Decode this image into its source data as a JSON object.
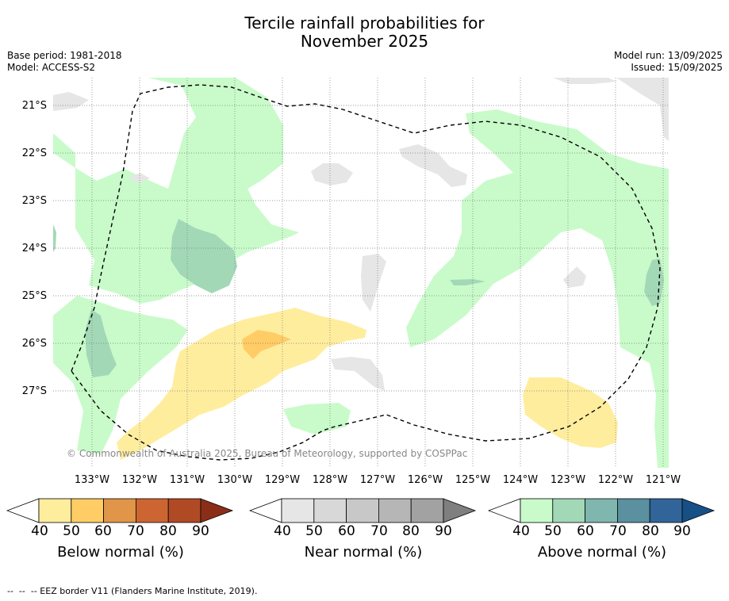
{
  "title_line1": "Tercile rainfall probabilities for",
  "title_line2": "November 2025",
  "base_period": "Base period: 1981-2018",
  "model": "Model: ACCESS-S2",
  "model_run": "Model run: 13/09/2025",
  "issued": "Issued: 15/09/2025",
  "copyright": "© Commonwealth of Australia 2025, Bureau of Meteorology, supported by COSPPac",
  "latitudes": [
    "21°S",
    "22°S",
    "23°S",
    "24°S",
    "25°S",
    "26°S",
    "27°S"
  ],
  "longitudes": [
    "133°W",
    "132°W",
    "131°W",
    "130°W",
    "129°W",
    "128°W",
    "127°W",
    "126°W",
    "125°W",
    "124°W",
    "123°W",
    "122°W",
    "121°W"
  ],
  "colorbars": [
    {
      "label": "Below normal (%)",
      "ticks": [
        "40",
        "50",
        "60",
        "70",
        "80",
        "90"
      ],
      "colors": [
        "#ffffff",
        "#ffed9e",
        "#ffcc66",
        "#e09548",
        "#cd6532",
        "#b04a25",
        "#8a2e18"
      ]
    },
    {
      "label": "Near normal (%)",
      "ticks": [
        "40",
        "50",
        "60",
        "70",
        "80",
        "90"
      ],
      "colors": [
        "#ffffff",
        "#e6e6e6",
        "#d8d8d8",
        "#c8c8c8",
        "#b6b6b6",
        "#a2a2a2",
        "#7f7f7f"
      ]
    },
    {
      "label": "Above normal (%)",
      "ticks": [
        "40",
        "50",
        "60",
        "70",
        "80",
        "90"
      ],
      "colors": [
        "#ffffff",
        "#c9fbca",
        "#a3d8b7",
        "#7fb6ae",
        "#5a90a0",
        "#31659a",
        "#174f87"
      ]
    }
  ],
  "footnote": "--  --  -- EEZ border V11 (Flanders Marine Institute, 2019)."
}
